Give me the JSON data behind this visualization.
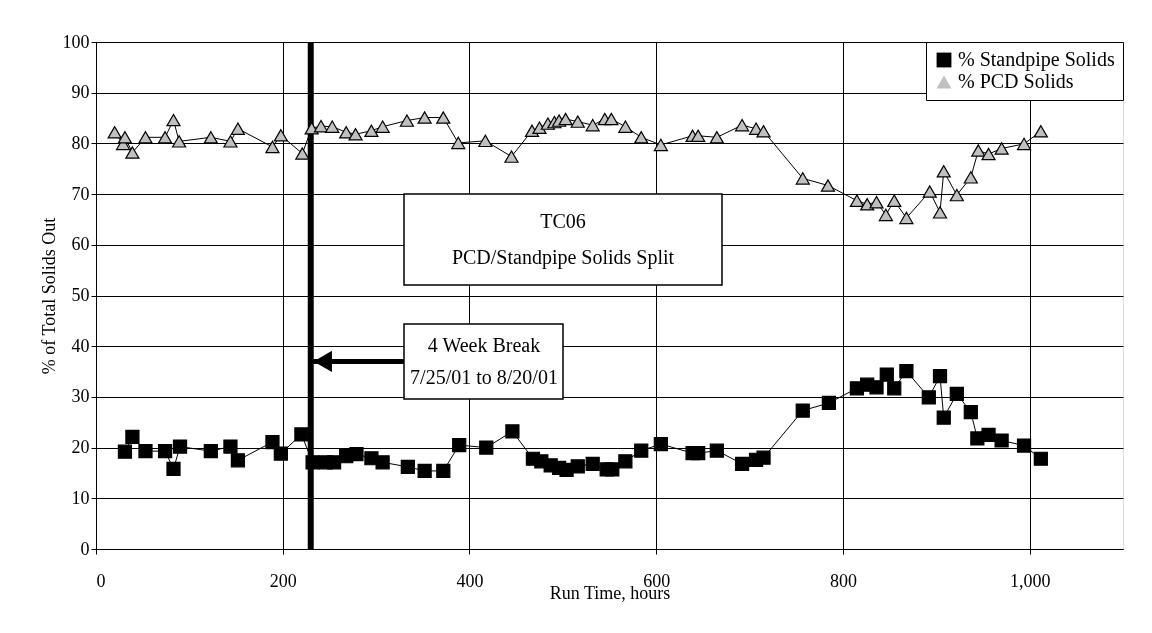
{
  "chart_data": {
    "type": "line",
    "xlabel": "Run Time, hours",
    "ylabel": "% of Total Solids Out",
    "xlim": [
      0,
      1100
    ],
    "xticks": [
      0,
      200,
      400,
      600,
      800,
      {
        "value": 1000,
        "label": "1,000"
      }
    ],
    "ylim": [
      0,
      100
    ],
    "yticks": [
      0,
      10,
      20,
      30,
      40,
      50,
      60,
      70,
      80,
      90,
      100
    ],
    "grid": true,
    "legend": "top right",
    "line_style": "solid",
    "series": [
      {
        "name": "% Standpipe Solids",
        "color": "#000000",
        "marker": "square",
        "x": [
          31,
          39,
          53,
          74,
          83,
          90,
          123,
          144,
          152,
          189,
          198,
          220,
          232,
          246,
          255,
          268,
          279,
          295,
          307,
          334,
          352,
          372,
          389,
          418,
          446,
          468,
          477,
          487,
          496,
          504,
          516,
          532,
          547,
          553,
          567,
          584,
          605,
          639,
          645,
          665,
          692,
          707,
          715,
          757,
          785,
          815,
          826,
          836,
          847,
          855,
          868,
          892,
          904,
          908,
          922,
          937,
          944,
          956,
          970,
          994,
          1012
        ],
        "values": [
          19.2,
          22.1,
          19.3,
          19.3,
          15.8,
          20.2,
          19.3,
          20.2,
          17.5,
          21.1,
          18.8,
          22.6,
          17.1,
          17.1,
          17.1,
          18.3,
          18.7,
          17.9,
          17.1,
          16.2,
          15.4,
          15.4,
          20.5,
          20.0,
          23.2,
          17.8,
          17.3,
          16.5,
          16.0,
          15.6,
          16.3,
          16.8,
          15.7,
          15.7,
          17.3,
          19.4,
          20.7,
          18.9,
          18.9,
          19.4,
          16.8,
          17.6,
          18.0,
          27.3,
          28.8,
          31.7,
          32.4,
          31.9,
          34.4,
          31.7,
          35.1,
          29.9,
          34.1,
          25.9,
          30.6,
          27.0,
          21.8,
          22.5,
          21.4,
          20.4,
          17.8
        ]
      },
      {
        "name": "% PCD Solids",
        "color": "#c0c0c0",
        "marker": "triangle",
        "x": [
          20,
          29,
          31,
          39,
          53,
          74,
          83,
          89,
          123,
          144,
          152,
          189,
          198,
          221,
          231,
          241,
          253,
          268,
          278,
          295,
          307,
          333,
          352,
          372,
          388,
          417,
          445,
          467,
          475,
          484,
          491,
          496,
          503,
          516,
          532,
          545,
          552,
          567,
          584,
          605,
          639,
          645,
          665,
          692,
          707,
          715,
          757,
          784,
          815,
          826,
          836,
          846,
          855,
          868,
          893,
          904,
          908,
          922,
          937,
          945,
          956,
          970,
          994,
          1012
        ],
        "values": [
          82.2,
          79.9,
          81.2,
          78.2,
          81.2,
          81.2,
          84.6,
          80.4,
          81.2,
          80.4,
          82.9,
          79.3,
          81.6,
          78.0,
          83.0,
          83.4,
          83.3,
          82.2,
          81.8,
          82.5,
          83.3,
          84.5,
          85.1,
          85.1,
          80.1,
          80.5,
          77.4,
          82.5,
          83.1,
          83.9,
          84.2,
          84.5,
          84.8,
          84.3,
          83.6,
          84.8,
          84.8,
          83.3,
          81.2,
          79.7,
          81.5,
          81.5,
          81.2,
          83.6,
          82.9,
          82.4,
          73.1,
          71.7,
          68.7,
          68.0,
          68.4,
          65.9,
          68.7,
          65.3,
          70.5,
          66.4,
          74.5,
          69.8,
          73.3,
          78.6,
          77.9,
          79.0,
          79.9,
          82.4
        ]
      }
    ],
    "ref_lines": [
      {
        "axis": "x",
        "value": 230,
        "color": "#000000",
        "line_style": "solid"
      }
    ],
    "annotations": [
      "TC06\nPCD/Standpipe Solids Split",
      {
        "text": "4 Week Break\n7/25/01 to 8/20/01",
        "x": 230,
        "y": 37
      }
    ]
  }
}
